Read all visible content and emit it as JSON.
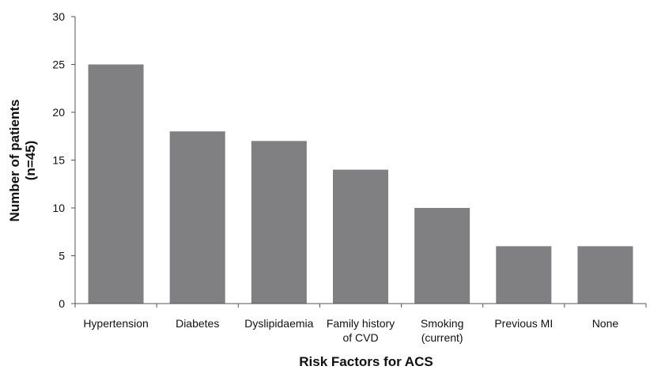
{
  "chart_data": {
    "type": "bar",
    "categories": [
      [
        "Hypertension"
      ],
      [
        "Diabetes"
      ],
      [
        "Dyslipidaemia"
      ],
      [
        "Family history",
        "of CVD"
      ],
      [
        "Smoking",
        "(current)"
      ],
      [
        "Previous MI"
      ],
      [
        "None"
      ]
    ],
    "values": [
      25,
      18,
      17,
      14,
      10,
      6,
      6
    ],
    "xlabel": "Risk Factors for ACS",
    "ylabel": [
      "Number of patients",
      "(n=45)"
    ],
    "ylim": [
      0,
      30
    ],
    "yticks": [
      0,
      5,
      10,
      15,
      20,
      25,
      30
    ],
    "grid": false,
    "bar_color": "#808083"
  }
}
